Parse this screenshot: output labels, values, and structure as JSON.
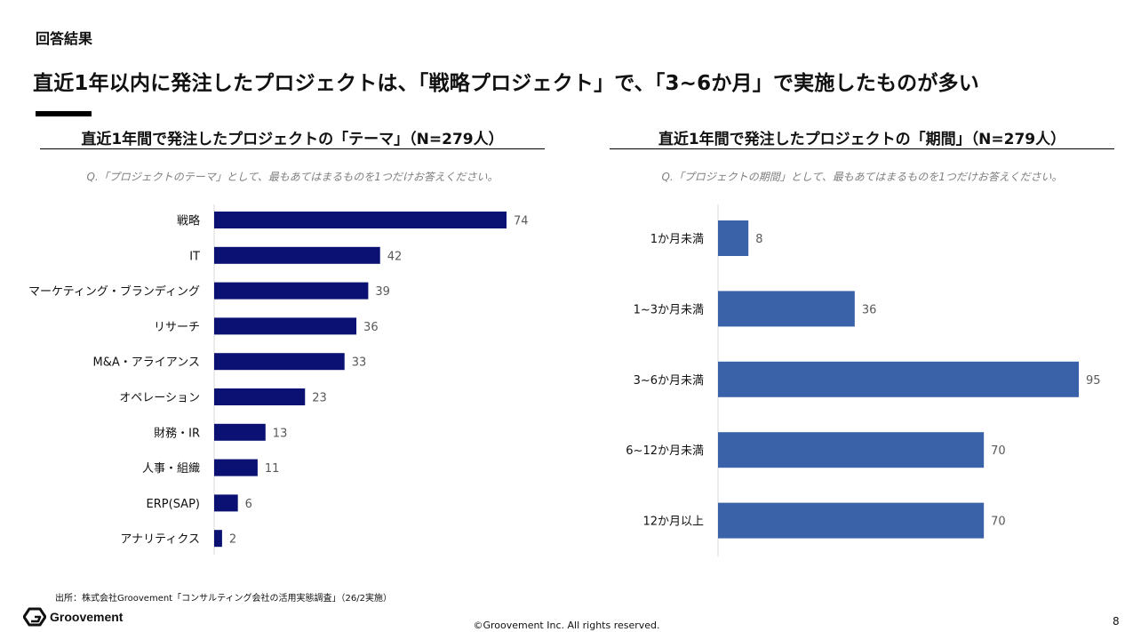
{
  "header": {
    "section_label": "回答結果",
    "headline": "直近1年以内に発注したプロジェクトは、「戦略プロジェクト」で、「3~6か月」で実施したものが多い"
  },
  "colors": {
    "left_bar": "#0a1172",
    "right_bar": "#3a62a8",
    "axis": "#d9d9d9"
  },
  "left_panel": {
    "title": "直近1年間で発注したプロジェクトの「テーマ」（N=279人）",
    "question": "Q.「プロジェクトのテーマ」として、最もあてはまるものを1つだけお答えください。"
  },
  "right_panel": {
    "title": "直近1年間で発注したプロジェクトの「期間」（N=279人）",
    "question": "Q.「プロジェクトの期間」として、最もあてはまるものを1つだけお答えください。"
  },
  "chart_data": [
    {
      "type": "bar",
      "orientation": "horizontal",
      "title": "直近1年間で発注したプロジェクトの「テーマ」（N=279人）",
      "categories": [
        "戦略",
        "IT",
        "マーケティング・ブランディング",
        "リサーチ",
        "M&A・アライアンス",
        "オペレーション",
        "財務・IR",
        "人事・組織",
        "ERP(SAP)",
        "アナリティクス"
      ],
      "values": [
        74,
        42,
        39,
        36,
        33,
        23,
        13,
        11,
        6,
        2
      ],
      "xlim": [
        0,
        74
      ]
    },
    {
      "type": "bar",
      "orientation": "horizontal",
      "title": "直近1年間で発注したプロジェクトの「期間」（N=279人）",
      "categories": [
        "1か月未満",
        "1~3か月未満",
        "3~6か月未満",
        "6~12か月未満",
        "12か月以上"
      ],
      "values": [
        8,
        36,
        95,
        70,
        70
      ],
      "xlim": [
        0,
        95
      ]
    }
  ],
  "footer": {
    "source": "出所：株式会社Groovement「コンサルティング会社の活用実態調査」（26/2実施）",
    "logo_text": "Groovement",
    "copyright": "©Groovement Inc. All rights reserved.",
    "page_number": "8"
  }
}
